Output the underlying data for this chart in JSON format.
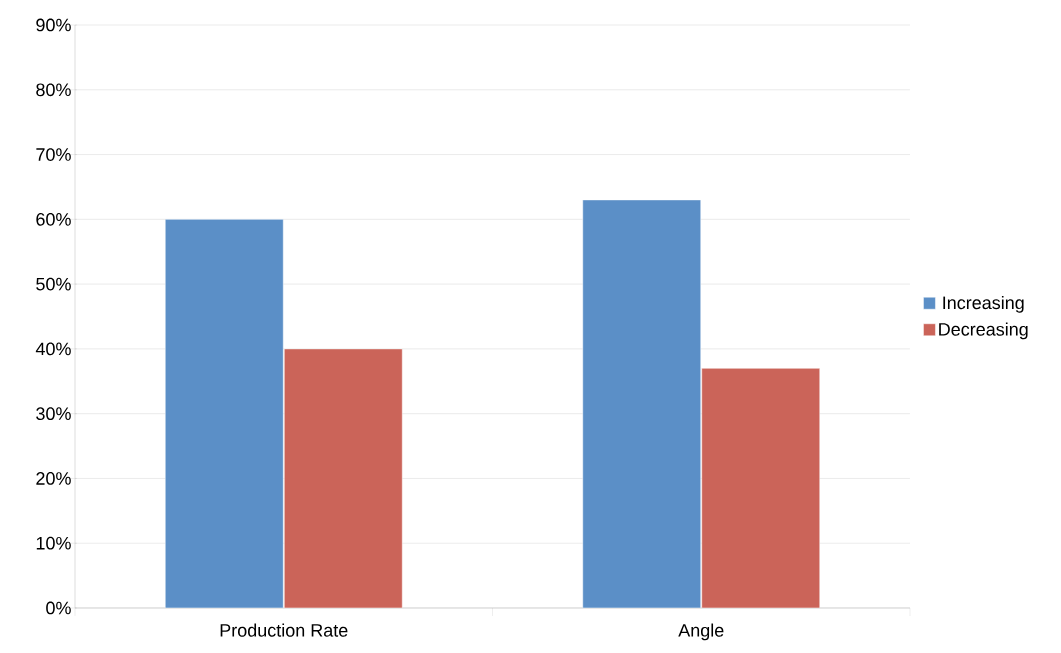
{
  "chart_data": {
    "type": "bar",
    "categories": [
      "Production Rate",
      "Angle"
    ],
    "series": [
      {
        "name": "Increasing",
        "color": "#5b8fc7",
        "values": [
          60,
          63
        ]
      },
      {
        "name": "Decreasing",
        "color": "#cb6459",
        "values": [
          40,
          37
        ]
      }
    ],
    "ylim": [
      0,
      90
    ],
    "yticks": [
      {
        "value": 0,
        "label": "0%"
      },
      {
        "value": 10,
        "label": "10%"
      },
      {
        "value": 20,
        "label": "20%"
      },
      {
        "value": 30,
        "label": "30%"
      },
      {
        "value": 40,
        "label": "40%"
      },
      {
        "value": 50,
        "label": "50%"
      },
      {
        "value": 60,
        "label": "60%"
      },
      {
        "value": 70,
        "label": "70%"
      },
      {
        "value": 80,
        "label": "80%"
      },
      {
        "value": 90,
        "label": "90%"
      }
    ],
    "grid": "y",
    "legend": "right"
  }
}
